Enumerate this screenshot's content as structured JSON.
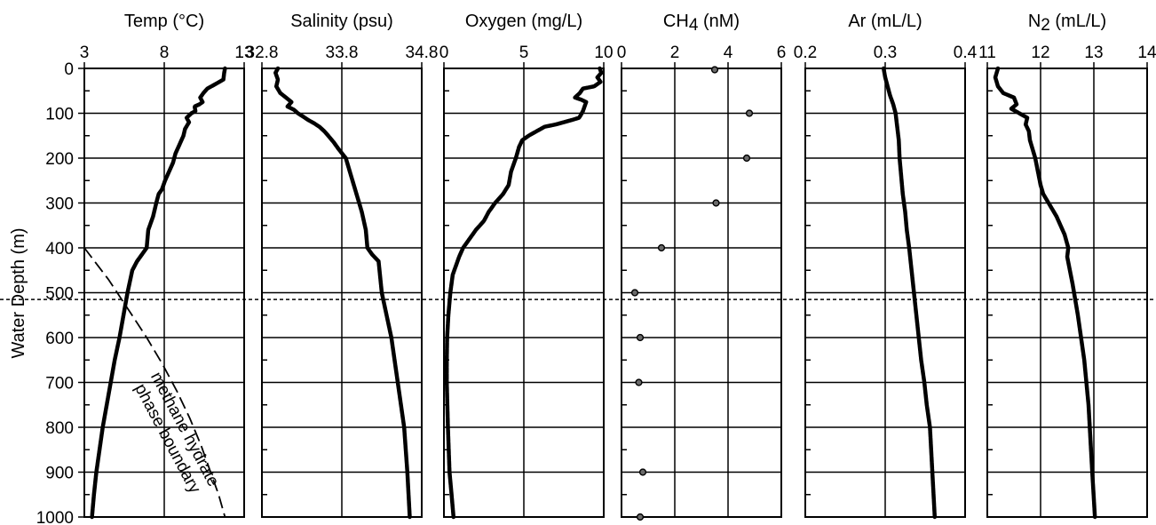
{
  "figure": {
    "ylabel": "Water Depth (m)",
    "ylim": [
      1000,
      0
    ],
    "yticks": [
      0,
      100,
      200,
      300,
      400,
      500,
      600,
      700,
      800,
      900,
      1000
    ],
    "reference_line_depth": 515,
    "phase_boundary_label_line1": "methane hydrate",
    "phase_boundary_label_line2": "phase boundary"
  },
  "chart_data": [
    {
      "type": "line",
      "title": "Temp (°C)",
      "xlim": [
        3,
        13
      ],
      "xticks": [
        3,
        8,
        13
      ],
      "series": [
        {
          "x": [
            11.8,
            11.75,
            11.7,
            11.3,
            10.7,
            10.45,
            10.25,
            10.4,
            10.2,
            9.9,
            9.95,
            9.7,
            9.4,
            9.55,
            9.3,
            9.2,
            8.95,
            8.7,
            8.55,
            8.3,
            8.05,
            7.85,
            7.65,
            7.5,
            7.3,
            7.0,
            6.9,
            6.6,
            6.3,
            6.0,
            5.7,
            5.45,
            5.2,
            4.9,
            4.65,
            4.4,
            4.15,
            3.95,
            3.75,
            3.6,
            3.48
          ],
          "y": [
            0,
            10,
            25,
            33,
            45,
            55,
            65,
            75,
            80,
            85,
            95,
            100,
            110,
            120,
            135,
            150,
            170,
            190,
            210,
            230,
            250,
            270,
            280,
            300,
            330,
            360,
            400,
            415,
            430,
            450,
            500,
            550,
            600,
            650,
            700,
            750,
            800,
            850,
            900,
            950,
            1000
          ]
        }
      ]
    },
    {
      "type": "line",
      "title": "Salinity (psu)",
      "xlim": [
        32.8,
        34.8
      ],
      "xticks": [
        32.8,
        33.8,
        34.8
      ],
      "xticklabels": [
        "32.8",
        "33.8",
        "34.8"
      ],
      "series": [
        {
          "x": [
            33.0,
            32.97,
            33.0,
            32.98,
            33.03,
            33.1,
            33.17,
            33.12,
            33.2,
            33.25,
            33.32,
            33.38,
            33.45,
            33.52,
            33.58,
            33.63,
            33.7,
            33.76,
            33.85,
            33.9,
            33.95,
            34.0,
            34.05,
            34.1,
            34.12,
            34.18,
            34.26,
            34.3,
            34.36,
            34.42,
            34.5,
            34.58,
            34.62,
            34.65
          ],
          "y": [
            0,
            10,
            25,
            40,
            55,
            65,
            75,
            85,
            92,
            100,
            108,
            115,
            122,
            130,
            140,
            150,
            165,
            180,
            200,
            230,
            260,
            290,
            320,
            360,
            400,
            415,
            430,
            500,
            550,
            600,
            700,
            800,
            900,
            1000
          ]
        }
      ]
    },
    {
      "type": "line",
      "title": "Oxygen (mg/L)",
      "xlim": [
        0,
        10
      ],
      "xticks": [
        0,
        5,
        10
      ],
      "series": [
        {
          "x": [
            9.75,
            9.85,
            9.6,
            9.8,
            9.4,
            8.7,
            8.5,
            8.2,
            8.6,
            8.9,
            8.8,
            8.7,
            8.55,
            8.45,
            8.0,
            7.5,
            7.0,
            6.3,
            5.8,
            5.3,
            4.9,
            4.7,
            4.5,
            4.2,
            4.05,
            3.7,
            3.2,
            2.8,
            2.5,
            2.0,
            1.6,
            1.2,
            0.95,
            0.75,
            0.55,
            0.4,
            0.28,
            0.2,
            0.18,
            0.18,
            0.25,
            0.35,
            0.48,
            0.6
          ],
          "y": [
            0,
            10,
            20,
            30,
            40,
            45,
            55,
            65,
            70,
            75,
            85,
            95,
            105,
            110,
            115,
            120,
            125,
            130,
            140,
            150,
            160,
            175,
            200,
            230,
            260,
            280,
            300,
            320,
            340,
            360,
            380,
            400,
            420,
            440,
            460,
            500,
            550,
            600,
            650,
            700,
            800,
            900,
            950,
            1000
          ]
        }
      ]
    },
    {
      "type": "scatter",
      "title": "CH",
      "title_sub": "4",
      "title_suffix": " (nM)",
      "xlim": [
        0,
        6
      ],
      "xticks": [
        0,
        2,
        4,
        6
      ],
      "series": [
        {
          "x": [
            3.5,
            4.8,
            4.7,
            3.55,
            1.5,
            0.5,
            0.7,
            0.65,
            0.8,
            0.7
          ],
          "y": [
            3,
            100,
            200,
            300,
            400,
            500,
            600,
            700,
            900,
            1000
          ]
        }
      ]
    },
    {
      "type": "line",
      "title": "Ar (mL/L)",
      "xlim": [
        0.2,
        0.4
      ],
      "xticks": [
        0.2,
        0.3,
        0.4
      ],
      "xticklabels": [
        "0.2",
        "0.3",
        "0.4"
      ],
      "series": [
        {
          "x": [
            0.298,
            0.3,
            0.303,
            0.306,
            0.31,
            0.313,
            0.315,
            0.317,
            0.318,
            0.32,
            0.322,
            0.325,
            0.327,
            0.33,
            0.333,
            0.336,
            0.339,
            0.342,
            0.345,
            0.349,
            0.352,
            0.356,
            0.359,
            0.362
          ],
          "y": [
            0,
            20,
            40,
            60,
            80,
            100,
            130,
            160,
            200,
            240,
            280,
            320,
            360,
            400,
            450,
            500,
            550,
            600,
            650,
            700,
            750,
            800,
            900,
            1000
          ]
        }
      ]
    },
    {
      "type": "line",
      "title": "N",
      "title_sub": "2",
      "title_suffix": " (mL/L)",
      "xlim": [
        11,
        14
      ],
      "xticks": [
        11,
        12,
        13,
        14
      ],
      "series": [
        {
          "x": [
            11.2,
            11.15,
            11.2,
            11.3,
            11.5,
            11.55,
            11.45,
            11.6,
            11.75,
            11.72,
            11.78,
            11.8,
            11.85,
            11.9,
            11.95,
            12.0,
            12.05,
            12.15,
            12.3,
            12.45,
            12.52,
            12.5,
            12.6,
            12.7,
            12.82,
            12.9,
            12.97,
            13.02
          ],
          "y": [
            0,
            20,
            40,
            55,
            65,
            80,
            90,
            100,
            110,
            125,
            140,
            160,
            180,
            200,
            230,
            260,
            280,
            300,
            330,
            370,
            400,
            420,
            480,
            550,
            650,
            750,
            900,
            1000
          ]
        }
      ]
    },
    {
      "type": "line",
      "title": "methane hydrate phase boundary",
      "panel": 0,
      "style": "dashed",
      "series": [
        {
          "x": [
            3.0,
            4.5,
            5.8,
            6.9,
            7.9,
            8.8,
            9.6,
            10.3,
            10.9,
            11.4,
            11.8
          ],
          "y": [
            400,
            470,
            540,
            600,
            660,
            720,
            780,
            840,
            900,
            950,
            1000
          ]
        }
      ]
    }
  ]
}
